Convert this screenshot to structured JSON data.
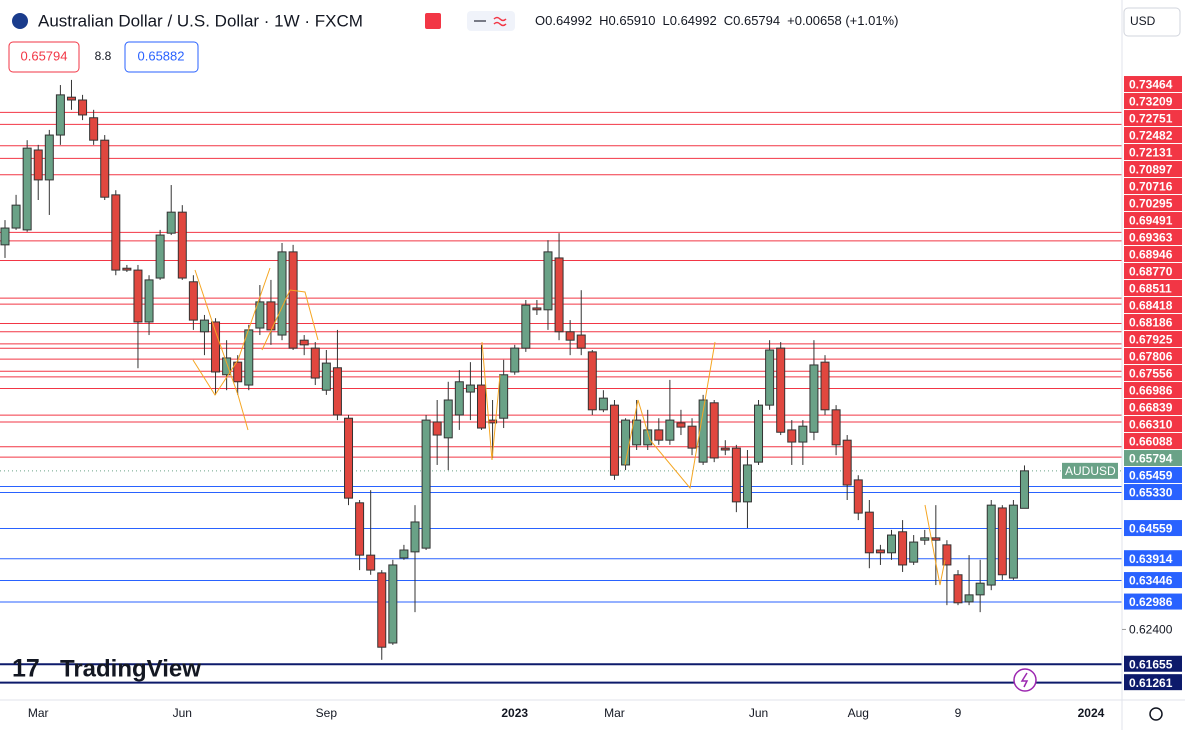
{
  "chart_data": {
    "type": "candlestick",
    "title": "Australian Dollar / U.S. Dollar · 1W · FXCM",
    "ohlc_header": [
      "O0.64992",
      "H0.65910",
      "L0.64992",
      "C0.65794",
      "+0.00658 (+1.01%)"
    ],
    "sell_price": "0.65794",
    "spread": "8.8",
    "buy_price": "0.65882",
    "currency": "USD",
    "symbol_label": "AUDUSD",
    "logo": "TradingView",
    "up_color": "#6aa287",
    "down_color": "#e0473f",
    "open": [
      0.7063,
      0.7099,
      0.7095,
      0.7266,
      0.7202,
      0.7298,
      0.7379,
      0.7373,
      0.7335,
      0.7287,
      0.717,
      0.7013,
      0.7009,
      0.6898,
      0.6992,
      0.7088,
      0.7133,
      0.6984,
      0.6877,
      0.6898,
      0.6785,
      0.6812,
      0.6763,
      0.6885,
      0.6941,
      0.687,
      0.7048,
      0.6859,
      0.6842,
      0.6752,
      0.68,
      0.6692,
      0.6511,
      0.6399,
      0.6361,
      0.6211,
      0.6393,
      0.6406,
      0.6414,
      0.6684,
      0.665,
      0.6699,
      0.6748,
      0.6763,
      0.6688,
      0.6692,
      0.6791,
      0.6842,
      0.6928,
      0.6924,
      0.7035,
      0.6877,
      0.687,
      0.6834,
      0.671,
      0.672,
      0.6592,
      0.6635,
      0.6635,
      0.6667,
      0.6645,
      0.6682,
      0.6675,
      0.6598,
      0.6725,
      0.6628,
      0.6628,
      0.6513,
      0.6598,
      0.672,
      0.6842,
      0.6667,
      0.6641,
      0.6662,
      0.6812,
      0.671,
      0.6645,
      0.656,
      0.6491,
      0.641,
      0.6404,
      0.6449,
      0.6384,
      0.6431,
      0.6436,
      0.6421,
      0.6357,
      0.6299,
      0.6314,
      0.6335,
      0.65,
      0.635,
      0.64992
    ],
    "high": [
      0.7116,
      0.717,
      0.7287,
      0.7277,
      0.7309,
      0.7405,
      0.7416,
      0.7384,
      0.7352,
      0.7298,
      0.718,
      0.702,
      0.702,
      0.6998,
      0.7095,
      0.7191,
      0.7148,
      0.6998,
      0.6913,
      0.6906,
      0.6859,
      0.6827,
      0.6892,
      0.6977,
      0.6988,
      0.7067,
      0.7063,
      0.687,
      0.6855,
      0.6838,
      0.6881,
      0.6699,
      0.6517,
      0.6538,
      0.6367,
      0.6389,
      0.6421,
      0.6506,
      0.6699,
      0.6731,
      0.677,
      0.6795,
      0.6812,
      0.6849,
      0.6731,
      0.6817,
      0.6849,
      0.6945,
      0.6945,
      0.7073,
      0.7088,
      0.6902,
      0.6966,
      0.6838,
      0.6752,
      0.6731,
      0.6692,
      0.6731,
      0.671,
      0.6692,
      0.6774,
      0.671,
      0.6692,
      0.6742,
      0.6731,
      0.6645,
      0.6635,
      0.6624,
      0.6731,
      0.6859,
      0.6855,
      0.6688,
      0.6688,
      0.6859,
      0.6827,
      0.672,
      0.6656,
      0.657,
      0.6517,
      0.6421,
      0.6453,
      0.6474,
      0.6442,
      0.6453,
      0.6506,
      0.6431,
      0.6367,
      0.6399,
      0.6389,
      0.6517,
      0.6506,
      0.6517,
      0.6591
    ],
    "low": [
      0.7035,
      0.7095,
      0.7091,
      0.7159,
      0.7127,
      0.7277,
      0.7352,
      0.733,
      0.7277,
      0.7159,
      0.6998,
      0.7005,
      0.6799,
      0.687,
      0.6988,
      0.7084,
      0.6988,
      0.6881,
      0.6827,
      0.6742,
      0.6752,
      0.6742,
      0.6752,
      0.687,
      0.6849,
      0.6859,
      0.6838,
      0.6827,
      0.6763,
      0.6742,
      0.6688,
      0.6506,
      0.6367,
      0.6357,
      0.6175,
      0.6207,
      0.6389,
      0.6277,
      0.641,
      0.6592,
      0.6581,
      0.6667,
      0.6688,
      0.6667,
      0.6607,
      0.6671,
      0.6785,
      0.6834,
      0.6913,
      0.6881,
      0.6859,
      0.6827,
      0.6827,
      0.6699,
      0.6705,
      0.656,
      0.6581,
      0.6624,
      0.6624,
      0.6635,
      0.6635,
      0.6656,
      0.6613,
      0.6592,
      0.6598,
      0.6613,
      0.6491,
      0.6457,
      0.6592,
      0.671,
      0.6656,
      0.6592,
      0.6592,
      0.6645,
      0.6699,
      0.6613,
      0.6517,
      0.6474,
      0.6371,
      0.6378,
      0.6389,
      0.6363,
      0.6378,
      0.6421,
      0.6335,
      0.6292,
      0.6292,
      0.6292,
      0.6277,
      0.6324,
      0.6346,
      0.6346,
      0.64992
    ],
    "close": [
      0.7099,
      0.7148,
      0.727,
      0.7202,
      0.7298,
      0.7384,
      0.7373,
      0.7341,
      0.7287,
      0.7165,
      0.7009,
      0.7009,
      0.6898,
      0.6988,
      0.7084,
      0.7133,
      0.6992,
      0.6902,
      0.6902,
      0.6791,
      0.6821,
      0.677,
      0.6881,
      0.6941,
      0.6881,
      0.7048,
      0.6842,
      0.6849,
      0.6778,
      0.681,
      0.6699,
      0.6521,
      0.6399,
      0.6367,
      0.6202,
      0.6378,
      0.641,
      0.647,
      0.6688,
      0.6656,
      0.6731,
      0.677,
      0.6763,
      0.6671,
      0.6682,
      0.6785,
      0.6842,
      0.6934,
      0.6924,
      0.7048,
      0.6877,
      0.6859,
      0.6842,
      0.671,
      0.6735,
      0.657,
      0.6688,
      0.6688,
      0.6667,
      0.6645,
      0.6688,
      0.6673,
      0.6628,
      0.6731,
      0.6607,
      0.6624,
      0.6513,
      0.6592,
      0.672,
      0.6838,
      0.6662,
      0.6641,
      0.6675,
      0.6806,
      0.671,
      0.6635,
      0.6549,
      0.6489,
      0.6404,
      0.6404,
      0.6442,
      0.6378,
      0.6427,
      0.6436,
      0.6431,
      0.6378,
      0.6297,
      0.6314,
      0.6339,
      0.6506,
      0.6357,
      0.6506,
      0.65794
    ],
    "ylim": [
      0.6089,
      0.7587
    ],
    "yticks": [
      {
        "value": 0.624,
        "label": "0.62400"
      }
    ],
    "xlim": [
      -0.45,
      100.8
    ],
    "xticks": [
      {
        "value": 3,
        "label": "Mar"
      },
      {
        "value": 16,
        "label": "Jun"
      },
      {
        "value": 29,
        "label": "Sep"
      },
      {
        "value": 46,
        "label": "2023"
      },
      {
        "value": 55,
        "label": "Mar"
      },
      {
        "value": 68,
        "label": "Jun"
      },
      {
        "value": 77,
        "label": "Aug"
      },
      {
        "value": 86,
        "label": "9"
      },
      {
        "value": 98,
        "label": "2024"
      }
    ],
    "last_price": {
      "value": 0.65794,
      "label": "0.65794"
    },
    "resistance_color": "#f23645",
    "support_color": "#2962ff",
    "major_support_color": "#0d1a6b",
    "resistance_levels": [
      {
        "value": 0.73464,
        "label": "0.73464"
      },
      {
        "value": 0.73209,
        "label": "0.73209"
      },
      {
        "value": 0.72751,
        "label": "0.72751"
      },
      {
        "value": 0.72482,
        "label": "0.72482"
      },
      {
        "value": 0.72131,
        "label": "0.72131"
      },
      {
        "value": 0.70897,
        "label": "0.70897"
      },
      {
        "value": 0.70716,
        "label": "0.70716"
      },
      {
        "value": 0.70295,
        "label": "0.70295"
      },
      {
        "value": 0.69491,
        "label": "0.69491"
      },
      {
        "value": 0.69363,
        "label": "0.69363"
      },
      {
        "value": 0.68946,
        "label": "0.68946"
      },
      {
        "value": 0.6877,
        "label": "0.68770"
      },
      {
        "value": 0.68511,
        "label": "0.68511"
      },
      {
        "value": 0.68418,
        "label": "0.68418"
      },
      {
        "value": 0.68186,
        "label": "0.68186"
      },
      {
        "value": 0.67925,
        "label": "0.67925"
      },
      {
        "value": 0.67806,
        "label": "0.67806"
      },
      {
        "value": 0.67556,
        "label": "0.67556"
      },
      {
        "value": 0.66986,
        "label": "0.66986"
      },
      {
        "value": 0.66839,
        "label": "0.66839"
      },
      {
        "value": 0.6631,
        "label": "0.66310"
      },
      {
        "value": 0.66088,
        "label": "0.66088"
      }
    ],
    "support_levels": [
      {
        "value": 0.65459,
        "label": "0.65459"
      },
      {
        "value": 0.6533,
        "label": "0.65330"
      },
      {
        "value": 0.64559,
        "label": "0.64559"
      },
      {
        "value": 0.63914,
        "label": "0.63914"
      },
      {
        "value": 0.63446,
        "label": "0.63446"
      },
      {
        "value": 0.62986,
        "label": "0.62986"
      }
    ],
    "major_support_levels": [
      {
        "value": 0.61655,
        "label": "0.61655"
      },
      {
        "value": 0.61261,
        "label": "0.61261"
      }
    ]
  }
}
